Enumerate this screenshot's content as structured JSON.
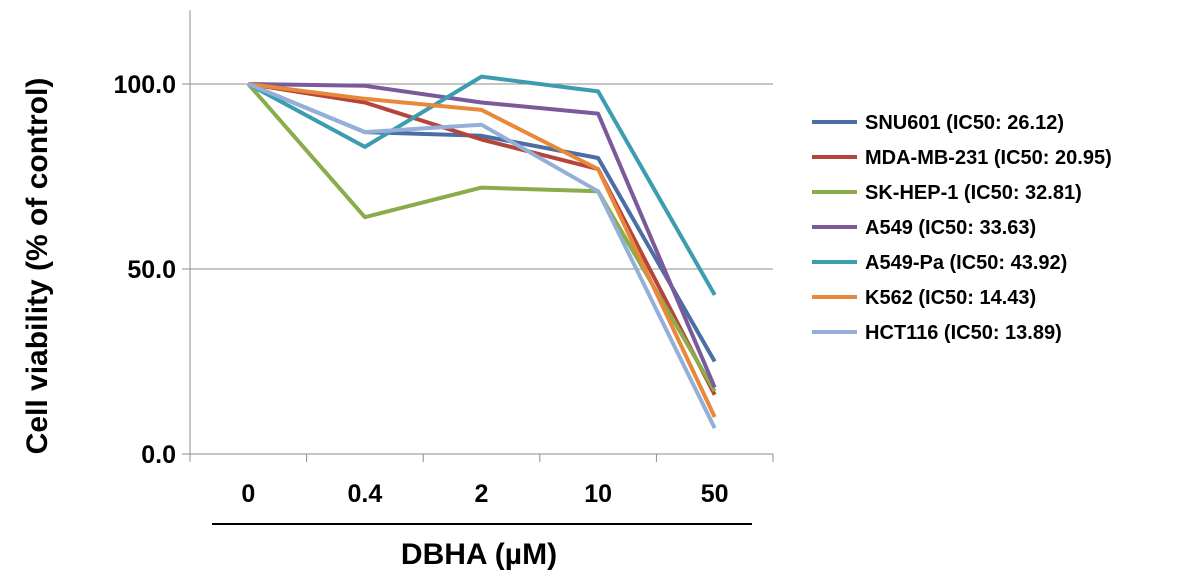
{
  "chart_data": {
    "type": "line",
    "title": "",
    "xlabel": "DBHA (µM)",
    "ylabel": "Cell viability (% of control)",
    "categories": [
      "0",
      "0.4",
      "2",
      "10",
      "50"
    ],
    "ylim": [
      0,
      120
    ],
    "yticks": [
      0,
      50,
      100
    ],
    "ytick_labels": [
      "0.0",
      "50.0",
      "100.0"
    ],
    "grid": true,
    "legend_position": "right",
    "series": [
      {
        "name": "SNU601 (IC50: 26.12)",
        "color": "#4a6fa5",
        "values": [
          100,
          87,
          86,
          80,
          25
        ]
      },
      {
        "name": "MDA-MB-231 (IC50: 20.95)",
        "color": "#b5453b",
        "values": [
          100,
          95,
          85,
          77,
          16
        ]
      },
      {
        "name": "SK-HEP-1 (IC50: 32.81)",
        "color": "#8aac4a",
        "values": [
          100,
          64,
          72,
          71,
          17
        ]
      },
      {
        "name": "A549 (IC50: 33.63)",
        "color": "#7a5a9a",
        "values": [
          100,
          99.5,
          95,
          92,
          18
        ]
      },
      {
        "name": "A549-Pa (IC50: 43.92)",
        "color": "#3c9cb0",
        "values": [
          100,
          83,
          102,
          98,
          43
        ]
      },
      {
        "name": "K562 (IC50: 14.43)",
        "color": "#e8883a",
        "values": [
          100,
          96,
          93,
          77,
          10
        ]
      },
      {
        "name": "HCT116 (IC50: 13.89)",
        "color": "#94afd8",
        "values": [
          100,
          87,
          89,
          71,
          7
        ]
      }
    ]
  }
}
